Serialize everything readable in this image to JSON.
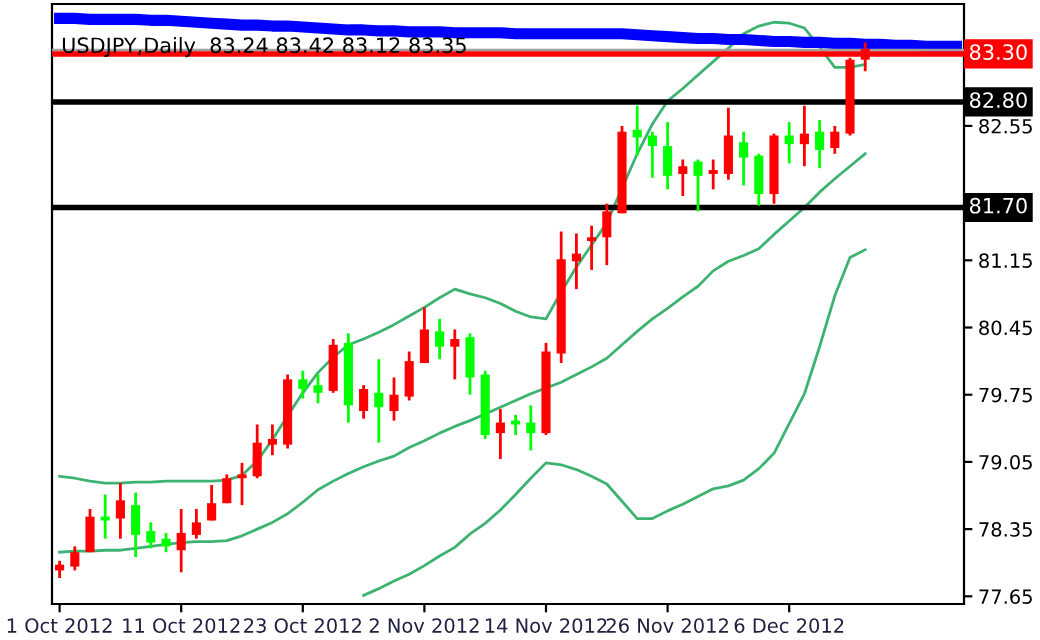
{
  "chart_data": {
    "type": "candlestick",
    "title": "USDJPY,Daily  83.24 83.42 83.12 83.35",
    "categories": [
      "1 Oct 2012",
      null,
      null,
      null,
      null,
      null,
      null,
      null,
      "11 Oct 2012",
      null,
      null,
      null,
      null,
      null,
      null,
      null,
      "23 Oct 2012",
      null,
      null,
      null,
      null,
      null,
      null,
      null,
      "2 Nov 2012",
      null,
      null,
      null,
      null,
      null,
      null,
      null,
      "14 Nov 2012",
      null,
      null,
      null,
      null,
      null,
      null,
      null,
      "26 Nov 2012",
      null,
      null,
      null,
      null,
      null,
      null,
      null,
      "6 Dec 2012",
      null,
      null,
      null,
      null,
      null,
      null,
      null,
      null,
      null,
      null,
      null
    ],
    "ohlc": [
      [
        77.92,
        78.02,
        77.84,
        77.98
      ],
      [
        77.96,
        78.17,
        77.92,
        78.11
      ],
      [
        78.11,
        78.56,
        78.11,
        78.48
      ],
      [
        78.48,
        78.71,
        78.25,
        78.44
      ],
      [
        78.46,
        78.83,
        78.25,
        78.65
      ],
      [
        78.6,
        78.73,
        78.06,
        78.29
      ],
      [
        78.33,
        78.42,
        78.15,
        78.21
      ],
      [
        78.25,
        78.31,
        78.11,
        78.17
      ],
      [
        78.13,
        78.56,
        77.9,
        78.31
      ],
      [
        78.29,
        78.56,
        78.25,
        78.42
      ],
      [
        78.44,
        78.81,
        78.44,
        78.62
      ],
      [
        78.62,
        78.92,
        78.62,
        78.88
      ],
      [
        78.88,
        79.04,
        78.6,
        78.92
      ],
      [
        78.9,
        79.44,
        78.88,
        79.25
      ],
      [
        79.23,
        79.44,
        79.12,
        79.29
      ],
      [
        79.23,
        79.96,
        79.19,
        79.91
      ],
      [
        79.91,
        80.0,
        79.71,
        79.81
      ],
      [
        79.85,
        79.96,
        79.66,
        79.77
      ],
      [
        79.79,
        80.33,
        79.77,
        80.27
      ],
      [
        80.29,
        80.39,
        79.46,
        79.64
      ],
      [
        79.58,
        79.85,
        79.5,
        79.81
      ],
      [
        79.77,
        80.12,
        79.25,
        79.62
      ],
      [
        79.58,
        79.93,
        79.48,
        79.75
      ],
      [
        79.73,
        80.2,
        79.69,
        80.1
      ],
      [
        80.08,
        80.66,
        80.08,
        80.43
      ],
      [
        80.41,
        80.54,
        80.12,
        80.25
      ],
      [
        80.25,
        80.43,
        79.91,
        80.33
      ],
      [
        80.35,
        80.39,
        79.75,
        79.93
      ],
      [
        79.96,
        80.0,
        79.29,
        79.33
      ],
      [
        79.35,
        79.6,
        79.08,
        79.46
      ],
      [
        79.48,
        79.54,
        79.33,
        79.44
      ],
      [
        79.46,
        79.64,
        79.17,
        79.35
      ],
      [
        79.35,
        80.29,
        79.33,
        80.2
      ],
      [
        80.18,
        81.45,
        80.08,
        81.16
      ],
      [
        81.14,
        81.43,
        80.85,
        81.22
      ],
      [
        81.35,
        81.51,
        81.05,
        81.39
      ],
      [
        81.39,
        81.74,
        81.1,
        81.66
      ],
      [
        81.64,
        82.55,
        81.64,
        82.49
      ],
      [
        82.51,
        82.76,
        82.24,
        82.43
      ],
      [
        82.45,
        82.49,
        82.01,
        82.34
      ],
      [
        82.34,
        82.59,
        81.89,
        82.03
      ],
      [
        82.05,
        82.2,
        81.82,
        82.13
      ],
      [
        82.18,
        82.2,
        81.66,
        82.03
      ],
      [
        82.05,
        82.2,
        81.89,
        82.09
      ],
      [
        82.05,
        82.74,
        81.99,
        82.45
      ],
      [
        82.38,
        82.49,
        81.93,
        82.22
      ],
      [
        82.24,
        82.26,
        81.72,
        81.84
      ],
      [
        81.84,
        82.47,
        81.74,
        82.45
      ],
      [
        82.45,
        82.59,
        82.16,
        82.36
      ],
      [
        82.36,
        82.76,
        82.13,
        82.47
      ],
      [
        82.49,
        82.61,
        82.11,
        82.3
      ],
      [
        82.32,
        82.55,
        82.26,
        82.49
      ],
      [
        82.47,
        83.26,
        82.45,
        83.24
      ],
      [
        83.24,
        83.42,
        83.12,
        83.35
      ],
      null,
      null,
      null,
      null,
      null,
      null
    ],
    "colors": [
      "#ff0000",
      "#ff0000",
      "#ff0000",
      "#00ff00",
      "#ff0000",
      "#00ff00",
      "#00ff00",
      "#00ff00",
      "#ff0000",
      "#ff0000",
      "#ff0000",
      "#ff0000",
      "#ff0000",
      "#ff0000",
      "#ff0000",
      "#ff0000",
      "#00ff00",
      "#00ff00",
      "#ff0000",
      "#00ff00",
      "#ff0000",
      "#00ff00",
      "#ff0000",
      "#ff0000",
      "#ff0000",
      "#00ff00",
      "#ff0000",
      "#00ff00",
      "#00ff00",
      "#ff0000",
      "#00ff00",
      "#00ff00",
      "#ff0000",
      "#ff0000",
      "#ff0000",
      "#ff0000",
      "#ff0000",
      "#ff0000",
      "#00ff00",
      "#00ff00",
      "#00ff00",
      "#ff0000",
      "#00ff00",
      "#ff0000",
      "#ff0000",
      "#00ff00",
      "#00ff00",
      "#ff0000",
      "#00ff00",
      "#ff0000",
      "#00ff00",
      "#ff0000",
      "#ff0000",
      "#ff0000",
      null,
      null,
      null,
      null,
      null,
      null
    ],
    "series": [
      {
        "type": "line",
        "color": "#3cb371",
        "values": [
          78.9,
          78.88,
          78.85,
          78.83,
          78.83,
          78.84,
          78.84,
          78.85,
          78.85,
          78.85,
          78.85,
          78.86,
          78.91,
          79.06,
          79.28,
          79.53,
          79.77,
          79.98,
          80.14,
          80.27,
          80.33,
          80.4,
          80.48,
          80.57,
          80.66,
          80.76,
          80.85,
          80.8,
          80.76,
          80.7,
          80.62,
          80.56,
          80.54,
          80.82,
          81.08,
          81.31,
          81.54,
          null,
          82.26,
          82.57,
          82.81,
          82.94,
          83.08,
          83.22,
          83.36,
          83.51,
          83.59,
          83.63,
          83.62,
          83.57,
          83.37,
          83.16,
          83.16,
          83.19,
          null,
          null,
          null,
          null,
          null,
          null
        ]
      },
      {
        "type": "line",
        "color": "#3cb371",
        "values": [
          78.11,
          78.12,
          78.12,
          78.13,
          78.13,
          78.15,
          78.17,
          78.19,
          78.21,
          78.22,
          78.22,
          78.23,
          78.28,
          78.35,
          78.42,
          78.51,
          78.63,
          78.76,
          78.85,
          78.93,
          79.0,
          79.06,
          79.11,
          79.2,
          79.27,
          79.35,
          79.42,
          79.48,
          79.55,
          79.62,
          79.69,
          79.76,
          79.82,
          79.88,
          79.96,
          80.04,
          80.13,
          80.27,
          80.41,
          80.54,
          80.65,
          80.77,
          80.88,
          81.04,
          81.14,
          81.2,
          81.27,
          81.42,
          81.56,
          81.7,
          81.86,
          82.0,
          82.13,
          82.26,
          null,
          null,
          null,
          null,
          null,
          null
        ]
      },
      {
        "type": "line",
        "color": "#3cb371",
        "values": [
          null,
          null,
          null,
          null,
          null,
          null,
          null,
          null,
          null,
          null,
          null,
          null,
          null,
          null,
          null,
          null,
          null,
          null,
          null,
          null,
          77.66,
          77.73,
          77.81,
          77.88,
          77.97,
          78.07,
          78.16,
          78.3,
          78.41,
          78.55,
          78.71,
          78.88,
          79.04,
          79.02,
          78.97,
          78.9,
          78.82,
          78.64,
          78.46,
          78.46,
          78.54,
          78.61,
          78.69,
          78.77,
          78.8,
          78.86,
          78.98,
          79.14,
          79.45,
          79.76,
          80.25,
          80.78,
          81.18,
          81.26,
          null,
          null,
          null,
          null,
          null,
          null
        ]
      },
      {
        "type": "line",
        "color": "#0000ff",
        "values": [
          83.67,
          83.67,
          83.66,
          83.66,
          83.66,
          83.66,
          83.65,
          83.65,
          83.64,
          83.63,
          83.62,
          83.61,
          83.6,
          83.6,
          83.59,
          83.59,
          83.58,
          83.57,
          83.56,
          83.55,
          83.55,
          83.54,
          83.54,
          83.53,
          83.53,
          83.53,
          83.52,
          83.52,
          83.52,
          83.52,
          83.51,
          83.51,
          83.51,
          83.51,
          83.51,
          83.51,
          83.51,
          83.51,
          83.5,
          83.49,
          83.48,
          83.47,
          83.46,
          83.46,
          83.45,
          83.45,
          83.44,
          83.43,
          83.43,
          83.42,
          83.42,
          83.41,
          83.41,
          83.4,
          83.4,
          83.39,
          83.39,
          83.38,
          83.38,
          83.38
        ]
      }
    ],
    "ref_lines": [
      {
        "axis": "y",
        "value": 83.34,
        "color": "#a0a0a0"
      },
      {
        "axis": "y",
        "value": 83.3,
        "label": "83.30",
        "color": "#ff0000"
      },
      {
        "axis": "y",
        "value": 82.8,
        "label": "82.80",
        "color": "#000000"
      },
      {
        "axis": "y",
        "value": 81.7,
        "label": "81.70",
        "color": "#000000"
      }
    ],
    "ylim": [
      77.57,
      83.82
    ],
    "yticks": [
      {
        "value": 82.55,
        "label": "82.55"
      },
      {
        "value": 81.15,
        "label": "81.15"
      },
      {
        "value": 80.45,
        "label": "80.45"
      },
      {
        "value": 79.75,
        "label": "79.75"
      },
      {
        "value": 79.05,
        "label": "79.05"
      },
      {
        "value": 78.35,
        "label": "78.35"
      },
      {
        "value": 77.65,
        "label": "77.65"
      }
    ]
  }
}
